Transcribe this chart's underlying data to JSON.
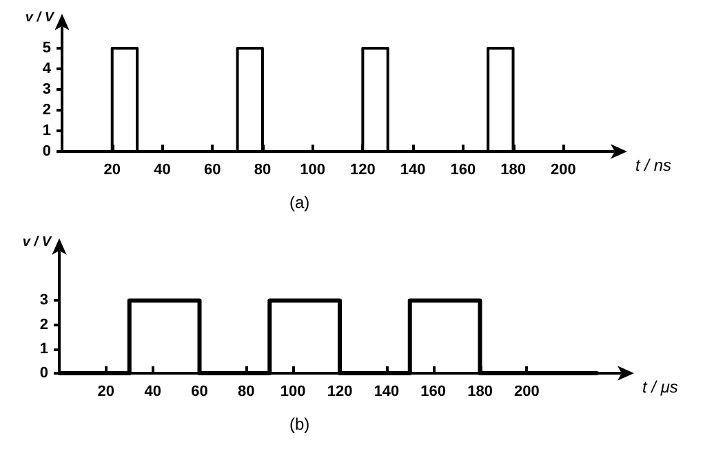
{
  "chart_data": [
    {
      "type": "line",
      "ylabel": "v / V",
      "xlabel": "t / ns",
      "annotations": [
        "(a)"
      ],
      "xlim": [
        0,
        220
      ],
      "xticks": [
        20,
        40,
        60,
        80,
        100,
        120,
        140,
        160,
        180,
        200
      ],
      "ylim": [
        0,
        6
      ],
      "yticks": [
        0,
        1,
        2,
        3,
        4,
        5
      ],
      "grid": false,
      "legend": false,
      "marker": "none",
      "line_style": "solid",
      "series": [
        {
          "color": "#000000",
          "x": [
            0,
            20,
            20,
            30,
            30,
            70,
            70,
            80,
            80,
            120,
            120,
            130,
            130,
            170,
            170,
            180,
            180,
            210
          ],
          "values": [
            0,
            0,
            5,
            5,
            0,
            0,
            5,
            5,
            0,
            0,
            5,
            5,
            0,
            0,
            5,
            5,
            0,
            0
          ]
        }
      ]
    },
    {
      "type": "line",
      "ylabel": "v / V",
      "xlabel": "t / μs",
      "annotations": [
        "(b)"
      ],
      "xlim": [
        0,
        240
      ],
      "xticks": [
        20,
        40,
        60,
        80,
        100,
        120,
        140,
        160,
        180,
        200
      ],
      "ylim": [
        0,
        5
      ],
      "yticks": [
        0,
        1,
        2,
        3
      ],
      "grid": false,
      "legend": false,
      "marker": "none",
      "line_style": "solid",
      "series": [
        {
          "color": "#000000",
          "x": [
            0,
            30,
            30,
            60,
            60,
            90,
            90,
            120,
            120,
            150,
            150,
            180,
            180,
            230
          ],
          "values": [
            0,
            0,
            3,
            3,
            0,
            0,
            3,
            3,
            0,
            0,
            3,
            3,
            0,
            0
          ]
        }
      ]
    }
  ]
}
